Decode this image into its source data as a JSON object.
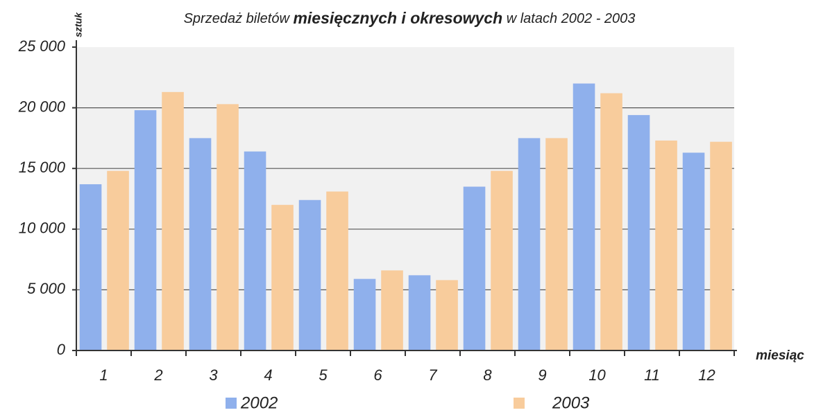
{
  "chart_data": {
    "type": "bar",
    "title": [
      "Sprzedaż biletów",
      "miesięcznych i okresowych",
      "w latach 2002 - 2003"
    ],
    "y_label": "sztuk",
    "x_label": "miesiąc",
    "categories": [
      "1",
      "2",
      "3",
      "4",
      "5",
      "6",
      "7",
      "8",
      "9",
      "10",
      "11",
      "12"
    ],
    "series": [
      {
        "name": "2002",
        "color": "#8fb0ec",
        "values": [
          13700,
          19800,
          17500,
          16400,
          12400,
          5900,
          6200,
          13500,
          17500,
          22000,
          19400,
          16300
        ]
      },
      {
        "name": "2003",
        "color": "#f8cc9c",
        "values": [
          14800,
          21300,
          20300,
          12000,
          13100,
          6600,
          5800,
          14800,
          17500,
          21200,
          17300,
          17200
        ]
      }
    ],
    "ylim": [
      0,
      25000
    ],
    "yticks": [
      0,
      {
        "value": 5000,
        "label": "5 000"
      },
      {
        "value": 10000,
        "label": "10 000"
      },
      {
        "value": 15000,
        "label": "15 000"
      },
      {
        "value": 20000,
        "label": "20 000"
      },
      {
        "value": 25000,
        "label": "25 000"
      }
    ],
    "grid": true,
    "legend": "bottom"
  }
}
